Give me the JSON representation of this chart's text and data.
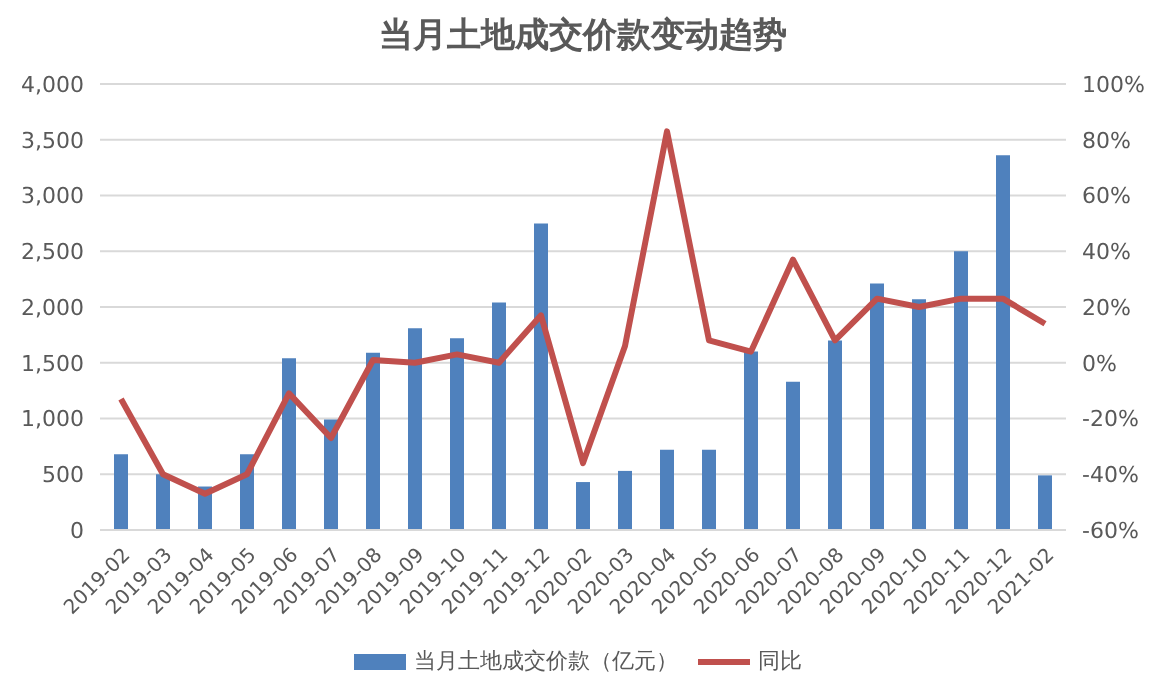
{
  "chart_data": {
    "type": "bar",
    "title": "当月土地成交价款变动趋势",
    "categories": [
      "2019-02",
      "2019-03",
      "2019-04",
      "2019-05",
      "2019-06",
      "2019-07",
      "2019-08",
      "2019-09",
      "2019-10",
      "2019-11",
      "2019-12",
      "2020-02",
      "2020-03",
      "2020-04",
      "2020-05",
      "2020-06",
      "2020-07",
      "2020-08",
      "2020-09",
      "2020-10",
      "2020-11",
      "2020-12",
      "2021-02"
    ],
    "series": [
      {
        "name": "当月土地成交价款（亿元）",
        "color": "#4f81bd",
        "values": [
          680,
          500,
          390,
          680,
          1540,
          990,
          1590,
          1810,
          1720,
          2040,
          2750,
          430,
          530,
          720,
          720,
          1600,
          1330,
          1700,
          2210,
          2070,
          2500,
          3360,
          490
        ]
      },
      {
        "name": "同比",
        "type": "line",
        "axis": "y2",
        "color": "#c0504d",
        "values": [
          -13,
          -40,
          -47,
          -40,
          -11,
          -27,
          1,
          0,
          3,
          0,
          17,
          -36,
          6,
          83,
          8,
          4,
          37,
          8,
          23,
          20,
          23,
          23,
          14
        ]
      }
    ],
    "ylim": [
      0,
      4000
    ],
    "yticks": [
      {
        "value": 0,
        "label": "0"
      },
      {
        "value": 500,
        "label": "500"
      },
      {
        "value": 1000,
        "label": "1,000"
      },
      {
        "value": 1500,
        "label": "1,500"
      },
      {
        "value": 2000,
        "label": "2,000"
      },
      {
        "value": 2500,
        "label": "2,500"
      },
      {
        "value": 3000,
        "label": "3,000"
      },
      {
        "value": 3500,
        "label": "3,500"
      },
      {
        "value": 4000,
        "label": "4,000"
      }
    ],
    "y2lim": [
      -60,
      100
    ],
    "y2ticks": [
      {
        "value": -60,
        "label": "-60%"
      },
      {
        "value": -40,
        "label": "-40%"
      },
      {
        "value": -20,
        "label": "-20%"
      },
      {
        "value": 0,
        "label": "0%"
      },
      {
        "value": 20,
        "label": "20%"
      },
      {
        "value": 40,
        "label": "40%"
      },
      {
        "value": 60,
        "label": "60%"
      },
      {
        "value": 80,
        "label": "80%"
      },
      {
        "value": 100,
        "label": "100%"
      }
    ],
    "grid": "y",
    "legend": "bottom",
    "marker": "none",
    "line_style": "solid"
  }
}
